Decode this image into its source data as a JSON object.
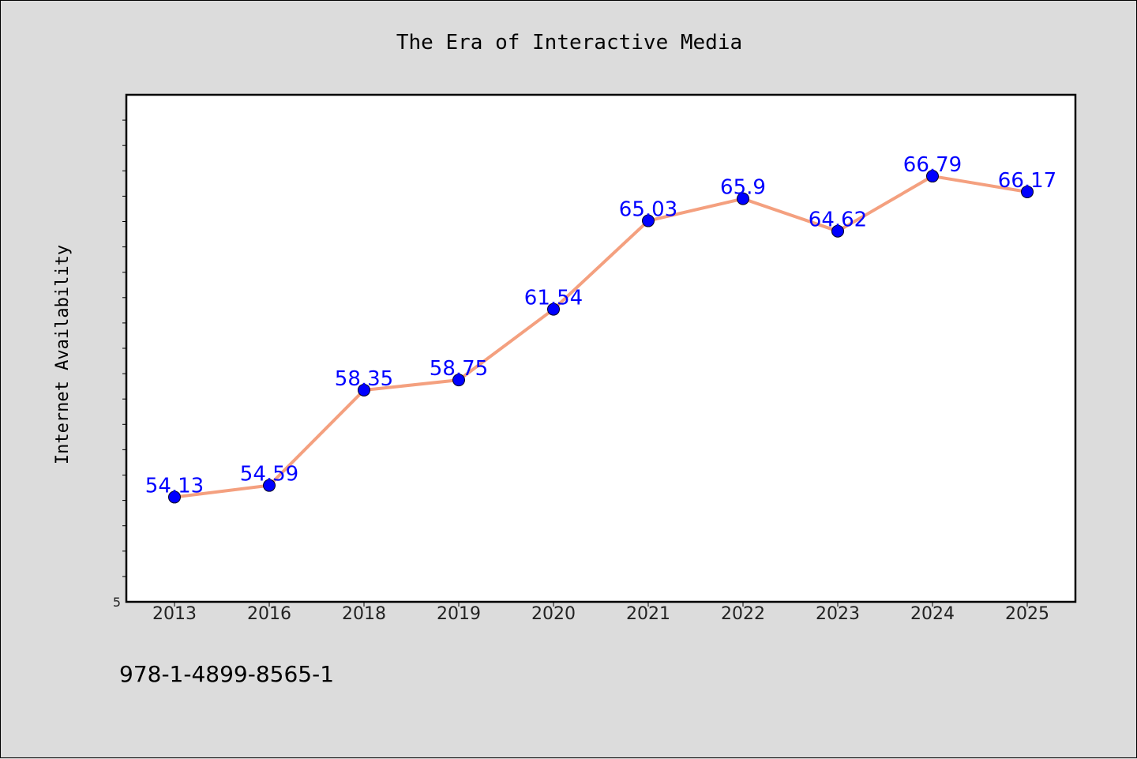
{
  "chart_data": {
    "type": "line",
    "title": "The Era of Interactive Media",
    "xlabel": "",
    "ylabel": "Internet Availability",
    "categories": [
      "2013",
      "2016",
      "2018",
      "2019",
      "2020",
      "2021",
      "2022",
      "2023",
      "2024",
      "2025"
    ],
    "series": [
      {
        "values": [
          54.13,
          54.59,
          58.35,
          58.75,
          61.54,
          65.03,
          65.9,
          64.62,
          66.79,
          66.17
        ],
        "labels": [
          "54.13",
          "54.59",
          "58.35",
          "58.75",
          "61.54",
          "65.03",
          "65.9",
          "64.62",
          "66.79",
          "66.17"
        ]
      }
    ],
    "ylim": [
      50,
      70
    ],
    "yticks_labeled": [
      "5"
    ],
    "grid": false,
    "legend": "none",
    "line_color": "#f4a07f",
    "marker_color": "#0000ff",
    "label_color": "#0000ff"
  },
  "footer": {
    "isbn": "978-1-4899-8565-1"
  }
}
